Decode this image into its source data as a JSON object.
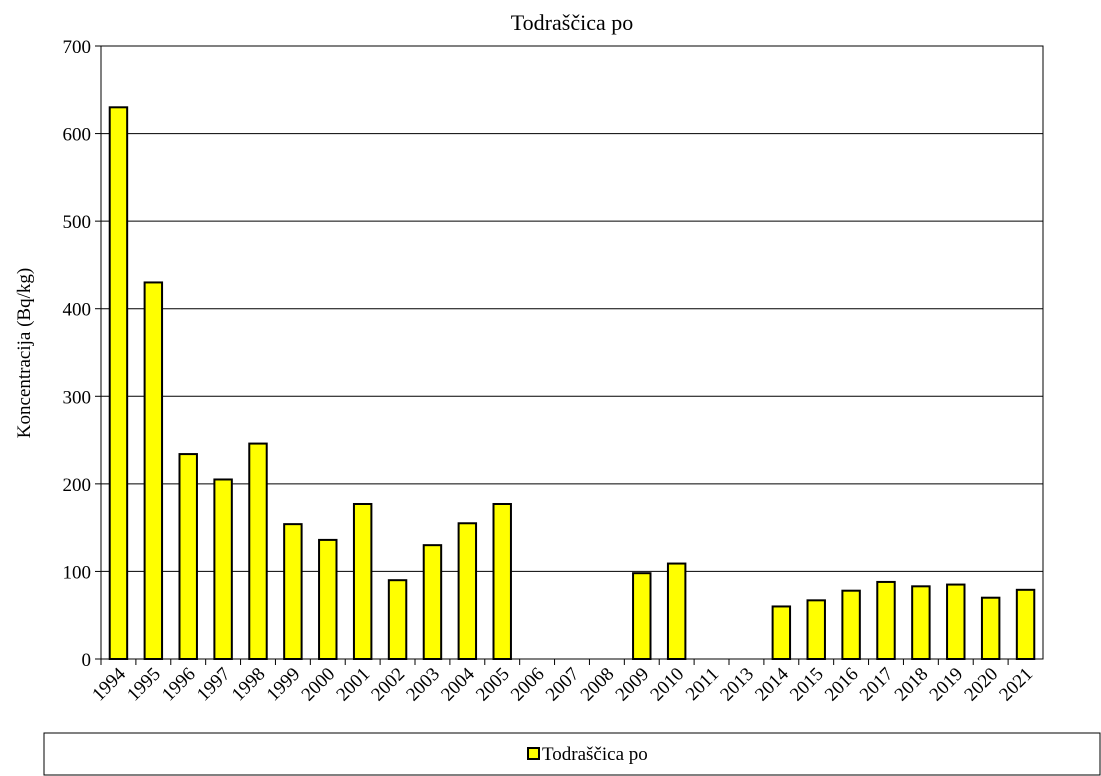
{
  "chart_data": {
    "type": "bar",
    "title": "Todraščica po",
    "y_label": "Koncentracija (Bq/kg)",
    "categories": [
      "1994",
      "1995",
      "1996",
      "1997",
      "1998",
      "1999",
      "2000",
      "2001",
      "2002",
      "2003",
      "2004",
      "2005",
      "2006",
      "2007",
      "2008",
      "2009",
      "2010",
      "2011",
      "2013",
      "2014",
      "2015",
      "2016",
      "2017",
      "2018",
      "2019",
      "2020",
      "2021"
    ],
    "series": [
      {
        "name": "Todraščica po",
        "color": "#ffff00",
        "values": [
          630,
          430,
          234,
          205,
          246,
          154,
          136,
          177,
          90,
          130,
          155,
          177,
          null,
          null,
          null,
          98,
          109,
          null,
          null,
          60,
          67,
          78,
          88,
          83,
          85,
          70,
          79
        ]
      }
    ],
    "ylim": [
      0,
      700
    ],
    "yticks": [
      0,
      100,
      200,
      300,
      400,
      500,
      600,
      700
    ],
    "grid": true,
    "legend": "bottom"
  }
}
